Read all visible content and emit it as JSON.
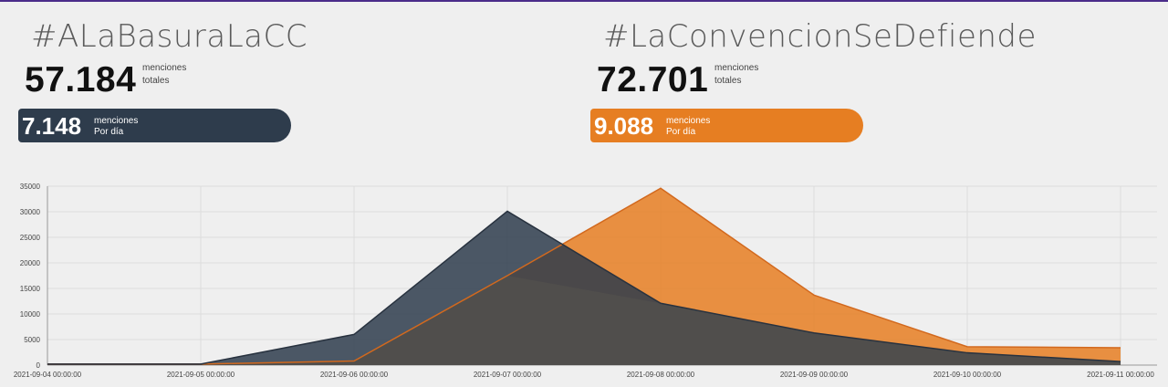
{
  "left": {
    "hashtag": "#ALaBasuraLaCC",
    "total": "57.184",
    "total_label_1": "menciones",
    "total_label_2": "totales",
    "daily": "7.148",
    "daily_label_1": "menciones",
    "daily_label_2": "Por día",
    "color": "#2e3c4c"
  },
  "right": {
    "hashtag": "#LaConvencionSeDefiende",
    "total": "72.701",
    "total_label_1": "menciones",
    "total_label_2": "totales",
    "daily": "9.088",
    "daily_label_1": "menciones",
    "daily_label_2": "Por día",
    "color": "#e67e22"
  },
  "chart_data": {
    "type": "area",
    "x": [
      "2021-09-04 00:00:00",
      "2021-09-05 00:00:00",
      "2021-09-06 00:00:00",
      "2021-09-07 00:00:00",
      "2021-09-08 00:00:00",
      "2021-09-09 00:00:00",
      "2021-09-10 00:00:00",
      "2021-09-11 00:00:00"
    ],
    "series": [
      {
        "values": [
          200,
          200,
          800,
          17500,
          34600,
          13700,
          3600,
          3400
        ],
        "color": "#e67e22"
      },
      {
        "values": [
          200,
          200,
          6000,
          30100,
          12100,
          6300,
          2400,
          700
        ],
        "color": "#2e3c4c"
      }
    ],
    "ylim": [
      0,
      35000
    ],
    "yticks": [
      "0",
      "5000",
      "10000",
      "15000",
      "20000",
      "25000",
      "30000",
      "35000"
    ],
    "grid": true,
    "overlap_color": "#504e4c"
  }
}
